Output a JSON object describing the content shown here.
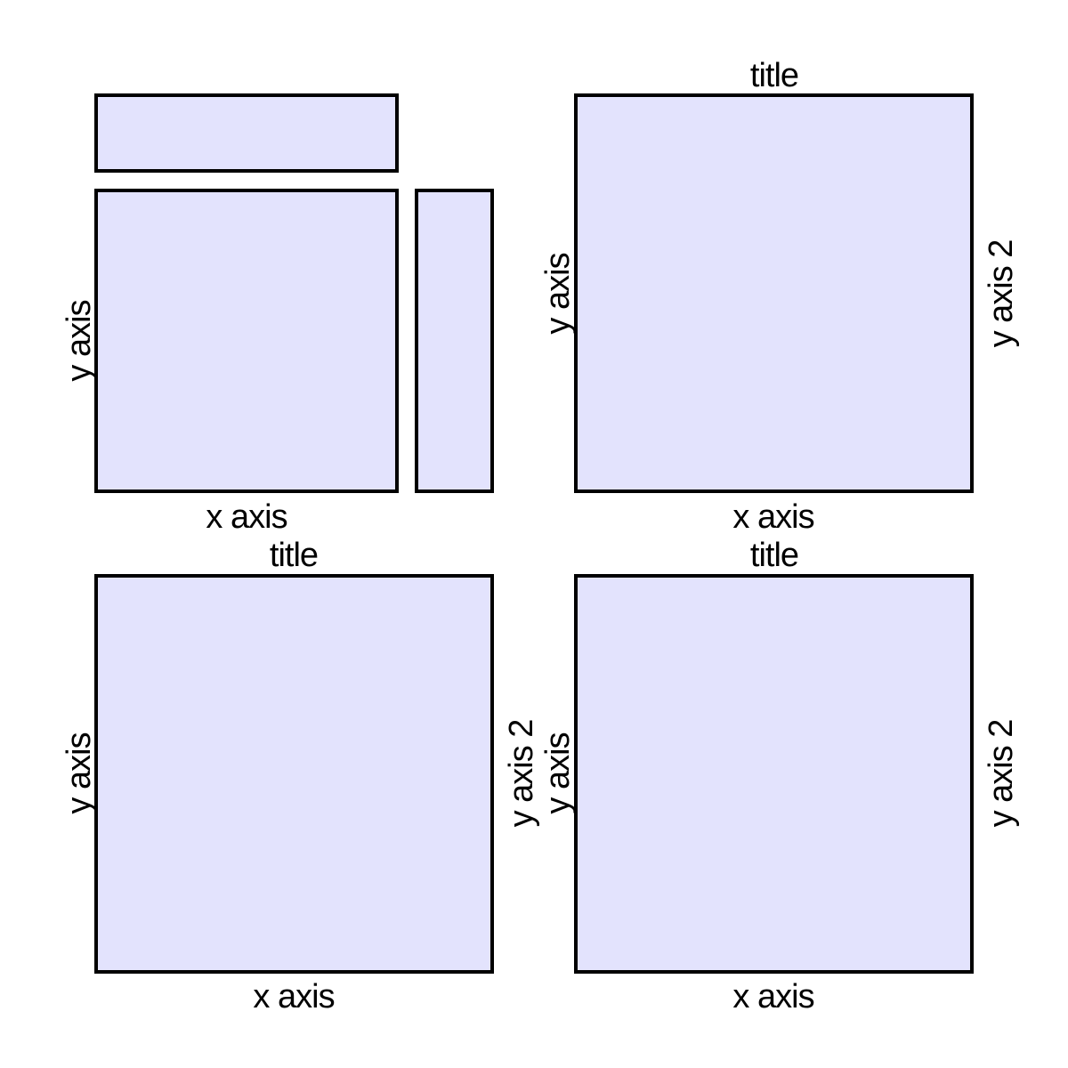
{
  "style": {
    "panel_fill": "#e3e3fd",
    "panel_border": "#000000",
    "text_color": "#000000"
  },
  "panels": {
    "top_left": {
      "x_label": "x axis",
      "y_label": "y axis"
    },
    "top_right": {
      "title": "title",
      "x_label": "x axis",
      "y_label": "y axis",
      "y2_label": "y axis 2"
    },
    "bottom_left": {
      "title": "title",
      "x_label": "x axis",
      "y_label": "y axis",
      "y2_label": "y axis 2"
    },
    "bottom_right": {
      "title": "title",
      "x_label": "x axis",
      "y_label": "y axis",
      "y2_label": "y axis 2"
    }
  }
}
